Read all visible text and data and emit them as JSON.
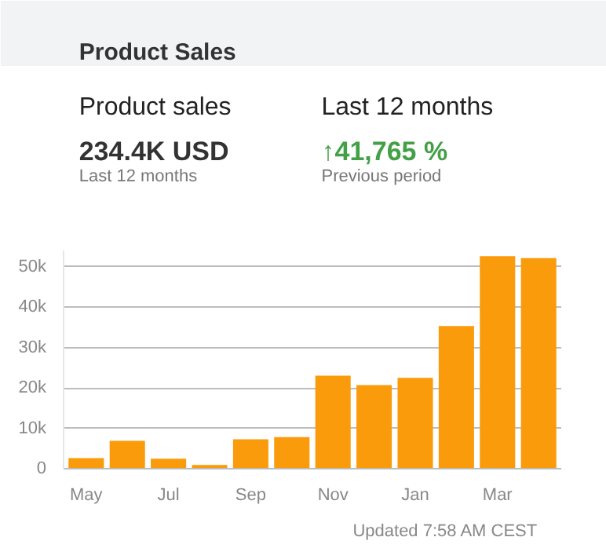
{
  "chart_data": {
    "type": "bar",
    "title": "Product Sales",
    "categories": [
      "May",
      null,
      "Jul",
      null,
      "Sep",
      null,
      "Nov",
      null,
      "Jan",
      null,
      "Mar",
      null
    ],
    "values": [
      2600,
      6900,
      2500,
      900,
      7300,
      7800,
      23000,
      20700,
      22500,
      35300,
      52600,
      52100
    ],
    "color": "#fa9b0b",
    "ylim": [
      0,
      54000
    ],
    "yticks": [
      0,
      {
        "value": 10000,
        "label": "10k"
      },
      {
        "value": 20000,
        "label": "20k"
      },
      {
        "value": 30000,
        "label": "30k"
      },
      {
        "value": 40000,
        "label": "40k"
      },
      {
        "value": 50000,
        "label": "50k"
      }
    ],
    "grid": "y",
    "annotations": [
      "Product sales",
      "Last 12 months",
      "234.4K USD",
      "↑41,765 %",
      "Last 12 months",
      "Previous period",
      "Updated 7:58 AM CEST"
    ]
  }
}
